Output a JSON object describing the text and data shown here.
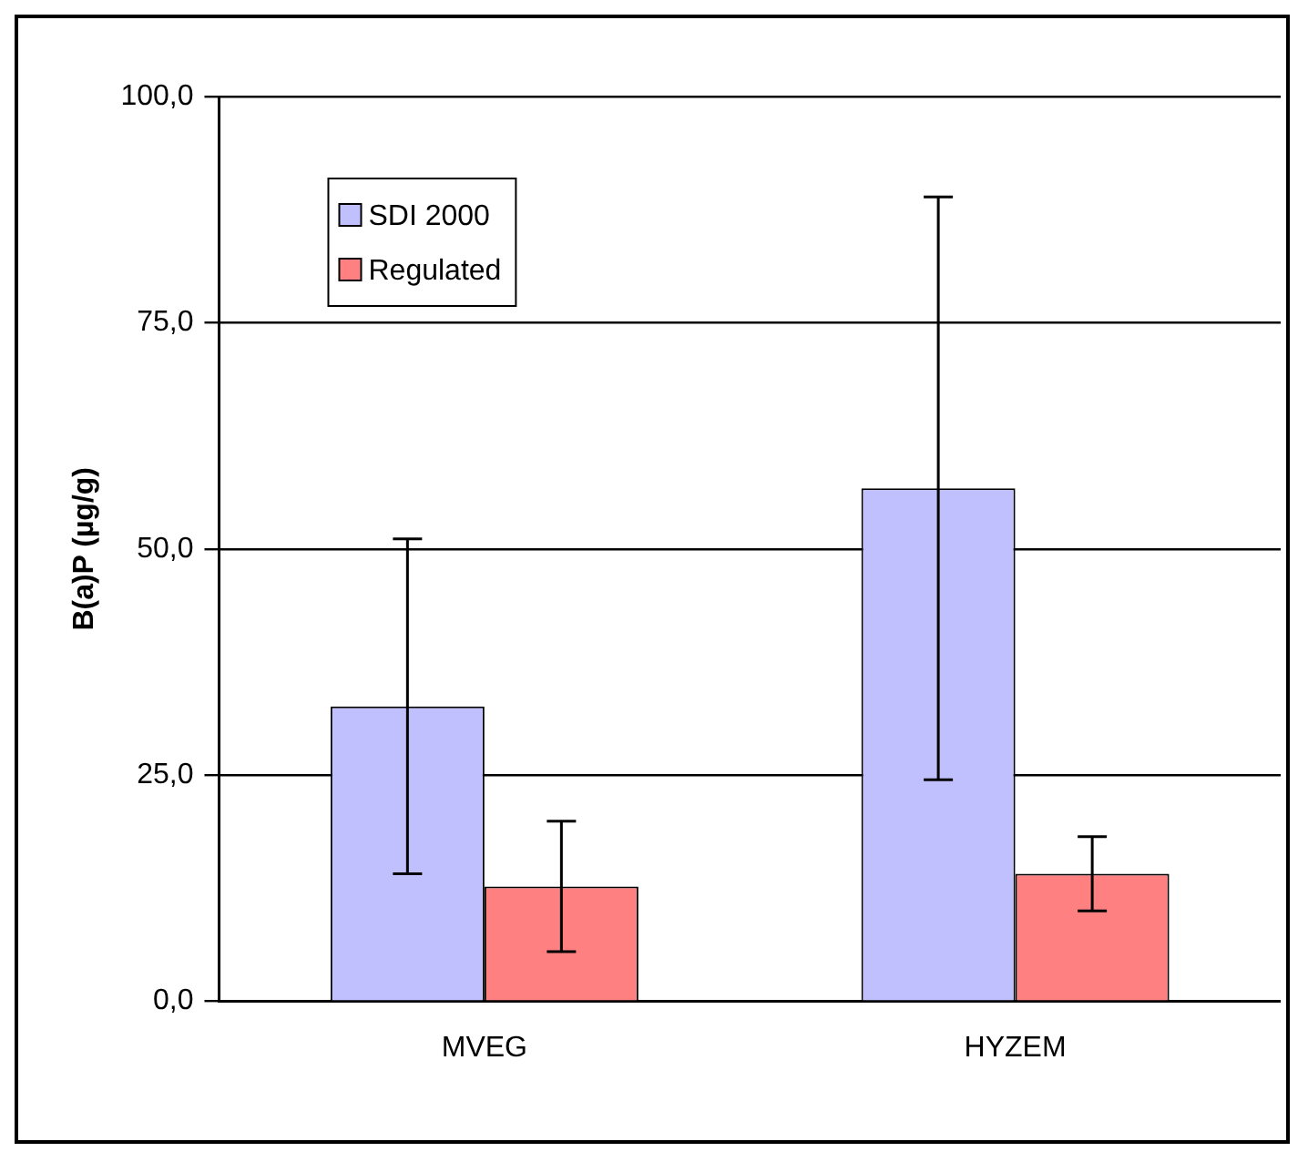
{
  "chart_data": {
    "type": "bar",
    "ylabel": "B(a)P (µg/g)",
    "categories": [
      "MVEG",
      "HYZEM"
    ],
    "series": [
      {
        "name": "SDI 2000",
        "color": "#c0c0ff",
        "values": [
          32.6,
          56.7
        ],
        "errors": [
          18.5,
          32.2
        ]
      },
      {
        "name": "Regulated",
        "color": "#ff8080",
        "values": [
          12.7,
          14.1
        ],
        "errors": [
          7.2,
          4.1
        ]
      }
    ],
    "ylim": [
      0,
      100
    ],
    "yticks": [
      {
        "value": 0,
        "label": "0,0"
      },
      {
        "value": 25,
        "label": "25,0"
      },
      {
        "value": 50,
        "label": "50,0"
      },
      {
        "value": 75,
        "label": "75,0"
      },
      {
        "value": 100,
        "label": "100,0"
      }
    ],
    "grid": "y",
    "legend": "top left"
  }
}
